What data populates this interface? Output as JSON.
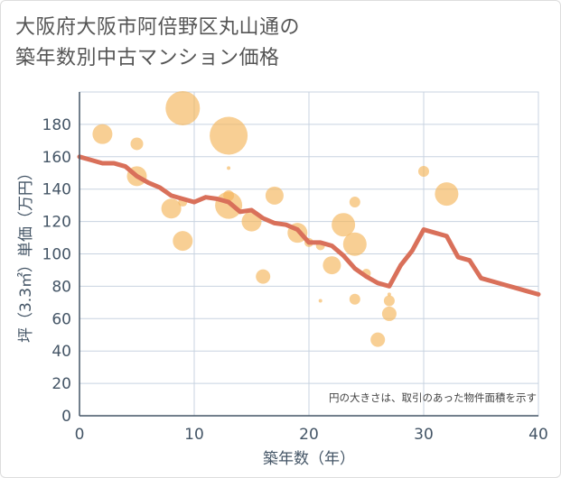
{
  "title_line1": "大阪府大阪市阿倍野区丸山通の",
  "title_line2": "築年数別中古マンション価格",
  "chart_data": {
    "type": "scatter",
    "xlabel": "築年数（年）",
    "ylabel": "坪（3.3㎡）単価（万円）",
    "xlim": [
      0,
      40
    ],
    "ylim": [
      0,
      200
    ],
    "xticks": [
      0,
      10,
      20,
      30,
      40
    ],
    "yticks": [
      0,
      20,
      40,
      60,
      80,
      100,
      120,
      140,
      160,
      180
    ],
    "grid": true,
    "note": "円の大きさは、取引のあった物件面積を示す",
    "colors": {
      "bubble": "#f5b55a",
      "line": "#d9705a",
      "grid": "#c8d3e0",
      "axis": "#445566"
    },
    "bubbles": [
      {
        "x": 2,
        "y": 174,
        "size": 11
      },
      {
        "x": 5,
        "y": 168,
        "size": 7
      },
      {
        "x": 5,
        "y": 148,
        "size": 11
      },
      {
        "x": 8,
        "y": 128,
        "size": 11
      },
      {
        "x": 9,
        "y": 190,
        "size": 19
      },
      {
        "x": 9,
        "y": 132,
        "size": 5
      },
      {
        "x": 9,
        "y": 108,
        "size": 11
      },
      {
        "x": 13,
        "y": 173,
        "size": 21
      },
      {
        "x": 13,
        "y": 153,
        "size": 2
      },
      {
        "x": 13,
        "y": 136,
        "size": 6
      },
      {
        "x": 13,
        "y": 130,
        "size": 15
      },
      {
        "x": 15,
        "y": 120,
        "size": 11
      },
      {
        "x": 16,
        "y": 86,
        "size": 8
      },
      {
        "x": 17,
        "y": 136,
        "size": 10
      },
      {
        "x": 19,
        "y": 113,
        "size": 11
      },
      {
        "x": 20,
        "y": 107,
        "size": 5
      },
      {
        "x": 21,
        "y": 105,
        "size": 5
      },
      {
        "x": 21,
        "y": 71,
        "size": 2
      },
      {
        "x": 22,
        "y": 93,
        "size": 10
      },
      {
        "x": 23,
        "y": 118,
        "size": 13
      },
      {
        "x": 24,
        "y": 132,
        "size": 6
      },
      {
        "x": 24,
        "y": 106,
        "size": 13
      },
      {
        "x": 24,
        "y": 72,
        "size": 6
      },
      {
        "x": 25,
        "y": 88,
        "size": 5
      },
      {
        "x": 26,
        "y": 47,
        "size": 8
      },
      {
        "x": 27,
        "y": 71,
        "size": 6
      },
      {
        "x": 27,
        "y": 63,
        "size": 8
      },
      {
        "x": 27,
        "y": 75,
        "size": 2
      },
      {
        "x": 30,
        "y": 151,
        "size": 6
      },
      {
        "x": 32,
        "y": 137,
        "size": 13
      }
    ],
    "trend": {
      "x": [
        0,
        1,
        2,
        3,
        4,
        5,
        6,
        7,
        8,
        9,
        10,
        11,
        12,
        13,
        14,
        15,
        16,
        17,
        18,
        19,
        20,
        21,
        22,
        23,
        24,
        25,
        26,
        27,
        28,
        29,
        30,
        31,
        32,
        33,
        34,
        35,
        36,
        37,
        38,
        39,
        40
      ],
      "y": [
        160,
        158,
        156,
        156,
        154,
        148,
        144,
        141,
        136,
        134,
        132,
        135,
        134,
        132,
        126,
        127,
        122,
        119,
        118,
        115,
        107,
        107,
        105,
        99,
        91,
        86,
        82,
        80,
        93,
        102,
        115,
        113,
        111,
        98,
        96,
        85,
        83,
        81,
        79,
        77,
        75
      ]
    }
  }
}
